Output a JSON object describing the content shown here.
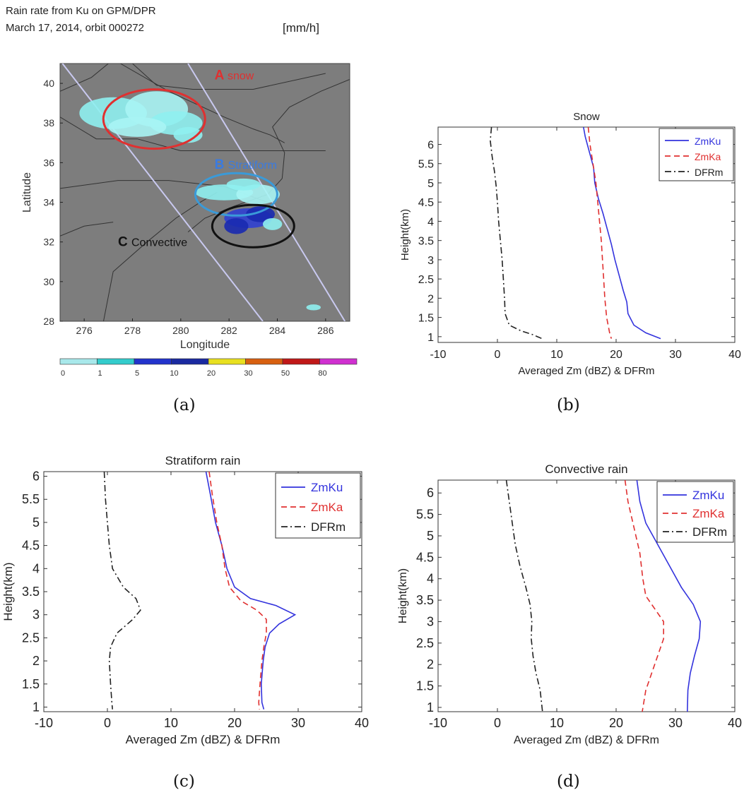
{
  "panel_a": {
    "title_line1": "Rain rate from Ku on GPM/DPR",
    "title_line2": "March 17, 2014, orbit 000272",
    "unit": "[mm/h]",
    "caption": "(a)",
    "regions": [
      {
        "letter": "A",
        "label": "snow",
        "color": "#e03030"
      },
      {
        "letter": "B",
        "label": "Stratiform",
        "color": "#3a7be0"
      },
      {
        "letter": "C",
        "label": "Convective",
        "color": "#111111"
      }
    ],
    "colorbar": {
      "ticks": [
        "0",
        "1",
        "5",
        "10",
        "20",
        "30",
        "50",
        "80"
      ],
      "colors": [
        "#a8e8ea",
        "#33cccc",
        "#2233cc",
        "#1a2aa0",
        "#e8e020",
        "#d86010",
        "#c01818",
        "#d030d0"
      ]
    }
  },
  "chart_data": [
    {
      "type": "map",
      "xlabel": "Longitude",
      "ylabel": "Latitude",
      "xlim": [
        275,
        287
      ],
      "ylim": [
        28,
        41
      ],
      "xticks": [
        276,
        278,
        280,
        282,
        284,
        286
      ],
      "yticks": [
        28,
        30,
        32,
        34,
        36,
        38,
        40
      ]
    },
    {
      "type": "line",
      "title": "Snow",
      "xlabel": "Averaged Zm (dBZ) & DFRm",
      "ylabel": "Height(km)",
      "xlim": [
        -10,
        40
      ],
      "ylim": [
        0.85,
        6.45
      ],
      "xticks": [
        -10,
        0,
        10,
        20,
        30,
        40
      ],
      "yticks": [
        1,
        1.5,
        2,
        2.5,
        3,
        3.5,
        4,
        4.5,
        5,
        5.5,
        6
      ],
      "legend_position": "top-right",
      "caption": "(b)",
      "series": [
        {
          "name": "ZmKu",
          "color": "#3333dd",
          "style": "solid",
          "points": [
            [
              14.5,
              6.45
            ],
            [
              14.8,
              6.2
            ],
            [
              15.5,
              5.8
            ],
            [
              16.2,
              5.4
            ],
            [
              16.4,
              5.0
            ],
            [
              17.0,
              4.6
            ],
            [
              17.8,
              4.2
            ],
            [
              18.5,
              3.8
            ],
            [
              19.2,
              3.4
            ],
            [
              19.8,
              3.0
            ],
            [
              20.5,
              2.6
            ],
            [
              21.2,
              2.2
            ],
            [
              21.8,
              1.9
            ],
            [
              22.0,
              1.6
            ],
            [
              23.0,
              1.3
            ],
            [
              25.0,
              1.1
            ],
            [
              27.5,
              0.95
            ]
          ]
        },
        {
          "name": "ZmKa",
          "color": "#e03030",
          "style": "dashed",
          "points": [
            [
              15.3,
              6.45
            ],
            [
              15.6,
              6.0
            ],
            [
              16.2,
              5.4
            ],
            [
              16.6,
              5.0
            ],
            [
              16.9,
              4.5
            ],
            [
              17.2,
              4.0
            ],
            [
              17.5,
              3.5
            ],
            [
              17.7,
              3.0
            ],
            [
              17.9,
              2.5
            ],
            [
              18.1,
              2.0
            ],
            [
              18.4,
              1.5
            ],
            [
              18.9,
              1.1
            ],
            [
              19.2,
              0.95
            ]
          ]
        },
        {
          "name": "DFRm",
          "color": "#222222",
          "style": "dashdot",
          "points": [
            [
              -1.0,
              6.45
            ],
            [
              -1.2,
              6.1
            ],
            [
              -0.9,
              5.7
            ],
            [
              -0.5,
              5.3
            ],
            [
              -0.2,
              4.9
            ],
            [
              0.0,
              4.5
            ],
            [
              0.2,
              4.0
            ],
            [
              0.5,
              3.5
            ],
            [
              0.8,
              3.0
            ],
            [
              1.0,
              2.5
            ],
            [
              1.2,
              2.0
            ],
            [
              1.3,
              1.6
            ],
            [
              2.0,
              1.3
            ],
            [
              4.0,
              1.15
            ],
            [
              6.0,
              1.05
            ],
            [
              7.5,
              0.95
            ]
          ]
        }
      ]
    },
    {
      "type": "line",
      "title": "Stratiform rain",
      "xlabel": "Averaged Zm (dBZ) & DFRm",
      "ylabel": "Height(km)",
      "xlim": [
        -10,
        40
      ],
      "ylim": [
        0.9,
        6.1
      ],
      "xticks": [
        -10,
        0,
        10,
        20,
        30,
        40
      ],
      "yticks": [
        1,
        1.5,
        2,
        2.5,
        3,
        3.5,
        4,
        4.5,
        5,
        5.5,
        6
      ],
      "legend_position": "top-right",
      "caption": "(c)",
      "series": [
        {
          "name": "ZmKu",
          "color": "#3333dd",
          "style": "solid",
          "points": [
            [
              15.5,
              6.1
            ],
            [
              16.2,
              5.6
            ],
            [
              17.0,
              5.0
            ],
            [
              18.0,
              4.5
            ],
            [
              18.8,
              4.0
            ],
            [
              20.0,
              3.6
            ],
            [
              22.5,
              3.35
            ],
            [
              26.5,
              3.2
            ],
            [
              29.5,
              3.0
            ],
            [
              27.0,
              2.8
            ],
            [
              25.5,
              2.6
            ],
            [
              24.8,
              2.3
            ],
            [
              24.5,
              2.0
            ],
            [
              24.2,
              1.5
            ],
            [
              24.3,
              1.1
            ],
            [
              24.6,
              0.95
            ]
          ]
        },
        {
          "name": "ZmKa",
          "color": "#e03030",
          "style": "dashed",
          "points": [
            [
              16.0,
              6.1
            ],
            [
              16.5,
              5.6
            ],
            [
              17.2,
              5.0
            ],
            [
              18.0,
              4.5
            ],
            [
              18.5,
              4.0
            ],
            [
              19.2,
              3.6
            ],
            [
              21.0,
              3.3
            ],
            [
              23.5,
              3.1
            ],
            [
              25.0,
              2.9
            ],
            [
              25.0,
              2.6
            ],
            [
              24.6,
              2.3
            ],
            [
              24.3,
              2.0
            ],
            [
              24.0,
              1.5
            ],
            [
              23.8,
              1.1
            ],
            [
              23.9,
              0.95
            ]
          ]
        },
        {
          "name": "DFRm",
          "color": "#222222",
          "style": "dashdot",
          "points": [
            [
              -0.5,
              6.1
            ],
            [
              -0.3,
              5.5
            ],
            [
              0.0,
              5.0
            ],
            [
              0.3,
              4.5
            ],
            [
              0.8,
              4.0
            ],
            [
              2.5,
              3.6
            ],
            [
              4.5,
              3.35
            ],
            [
              5.2,
              3.1
            ],
            [
              4.0,
              2.9
            ],
            [
              1.5,
              2.6
            ],
            [
              0.5,
              2.3
            ],
            [
              0.3,
              2.0
            ],
            [
              0.5,
              1.5
            ],
            [
              0.7,
              1.1
            ],
            [
              0.8,
              0.95
            ]
          ]
        }
      ]
    },
    {
      "type": "line",
      "title": "Convective rain",
      "xlabel": "Averaged Zm (dBZ) & DFRm",
      "ylabel": "Height(km)",
      "xlim": [
        -10,
        40
      ],
      "ylim": [
        0.9,
        6.3
      ],
      "xticks": [
        -10,
        0,
        10,
        20,
        30,
        40
      ],
      "yticks": [
        1,
        1.5,
        2,
        2.5,
        3,
        3.5,
        4,
        4.5,
        5,
        5.5,
        6
      ],
      "legend_position": "top-right",
      "caption": "(d)",
      "series": [
        {
          "name": "ZmKu",
          "color": "#3333dd",
          "style": "solid",
          "points": [
            [
              23.5,
              6.3
            ],
            [
              24.0,
              5.8
            ],
            [
              25.0,
              5.3
            ],
            [
              27.0,
              4.8
            ],
            [
              29.0,
              4.3
            ],
            [
              31.0,
              3.8
            ],
            [
              33.0,
              3.4
            ],
            [
              34.2,
              3.0
            ],
            [
              34.0,
              2.6
            ],
            [
              33.2,
              2.2
            ],
            [
              32.5,
              1.8
            ],
            [
              32.1,
              1.4
            ],
            [
              32.0,
              0.9
            ]
          ]
        },
        {
          "name": "ZmKa",
          "color": "#e03030",
          "style": "dashed",
          "points": [
            [
              21.5,
              6.3
            ],
            [
              22.0,
              5.8
            ],
            [
              23.0,
              5.2
            ],
            [
              24.0,
              4.6
            ],
            [
              24.5,
              4.0
            ],
            [
              25.0,
              3.6
            ],
            [
              26.5,
              3.3
            ],
            [
              28.0,
              3.0
            ],
            [
              28.0,
              2.6
            ],
            [
              27.0,
              2.2
            ],
            [
              26.0,
              1.8
            ],
            [
              25.0,
              1.4
            ],
            [
              24.4,
              0.9
            ]
          ]
        },
        {
          "name": "DFRm",
          "color": "#222222",
          "style": "dashdot",
          "points": [
            [
              1.5,
              6.3
            ],
            [
              2.0,
              5.8
            ],
            [
              2.5,
              5.3
            ],
            [
              3.0,
              4.8
            ],
            [
              3.8,
              4.3
            ],
            [
              4.8,
              3.8
            ],
            [
              5.5,
              3.4
            ],
            [
              5.8,
              3.0
            ],
            [
              5.7,
              2.6
            ],
            [
              6.0,
              2.2
            ],
            [
              6.5,
              1.8
            ],
            [
              7.2,
              1.4
            ],
            [
              7.6,
              0.9
            ]
          ]
        }
      ]
    }
  ]
}
